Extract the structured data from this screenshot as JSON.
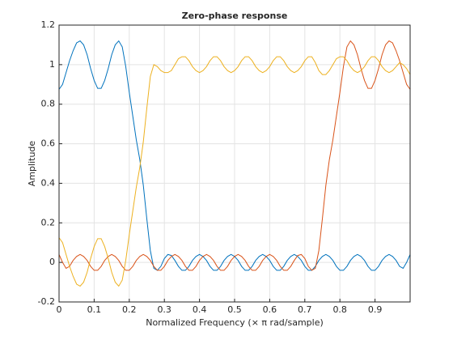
{
  "chart_data": {
    "type": "line",
    "title": "Zero-phase response",
    "x_label": "Normalized Frequency (× π rad/sample)",
    "y_label": "Amplitude",
    "x": [
      0,
      0.01,
      0.02,
      0.03,
      0.04,
      0.05,
      0.06,
      0.07,
      0.08,
      0.09,
      0.1,
      0.11,
      0.12,
      0.13,
      0.14,
      0.15,
      0.16,
      0.17,
      0.18,
      0.19,
      0.2,
      0.21,
      0.22,
      0.23,
      0.24,
      0.25,
      0.26,
      0.27,
      0.28,
      0.29,
      0.3,
      0.31,
      0.32,
      0.33,
      0.34,
      0.35,
      0.36,
      0.37,
      0.38,
      0.39,
      0.4,
      0.41,
      0.42,
      0.43,
      0.44,
      0.45,
      0.46,
      0.47,
      0.48,
      0.49,
      0.5,
      0.51,
      0.52,
      0.53,
      0.54,
      0.55,
      0.56,
      0.57,
      0.58,
      0.59,
      0.6,
      0.61,
      0.62,
      0.63,
      0.64,
      0.65,
      0.66,
      0.67,
      0.68,
      0.69,
      0.7,
      0.71,
      0.72,
      0.73,
      0.74,
      0.75,
      0.76,
      0.77,
      0.78,
      0.79,
      0.8,
      0.81,
      0.82,
      0.83,
      0.84,
      0.85,
      0.86,
      0.87,
      0.88,
      0.89,
      0.9,
      0.91,
      0.92,
      0.93,
      0.94,
      0.95,
      0.96,
      0.97,
      0.98,
      0.99,
      1
    ],
    "series": [
      {
        "color": "#0072bd",
        "values": [
          0.875,
          0.9,
          0.96,
          1.02,
          1.07,
          1.11,
          1.12,
          1.1,
          1.05,
          0.98,
          0.92,
          0.88,
          0.88,
          0.92,
          0.98,
          1.05,
          1.1,
          1.12,
          1.09,
          0.99,
          0.86,
          0.74,
          0.62,
          0.52,
          0.39,
          0.22,
          0.06,
          -0.03,
          -0.04,
          -0.02,
          0.02,
          0.04,
          0.035,
          0.01,
          -0.02,
          -0.04,
          -0.04,
          -0.02,
          0.01,
          0.03,
          0.04,
          0.03,
          0.01,
          -0.02,
          -0.04,
          -0.04,
          -0.02,
          0.01,
          0.03,
          0.04,
          0.03,
          0.01,
          -0.02,
          -0.04,
          -0.04,
          -0.02,
          0.01,
          0.03,
          0.04,
          0.03,
          0.01,
          -0.02,
          -0.04,
          -0.04,
          -0.02,
          0.01,
          0.03,
          0.04,
          0.03,
          0.01,
          -0.02,
          -0.04,
          -0.04,
          -0.02,
          0.01,
          0.03,
          0.04,
          0.03,
          0.01,
          -0.02,
          -0.04,
          -0.04,
          -0.02,
          0.01,
          0.03,
          0.04,
          0.03,
          0.01,
          -0.02,
          -0.04,
          -0.04,
          -0.02,
          0.01,
          0.03,
          0.04,
          0.03,
          0.01,
          -0.02,
          -0.03,
          0,
          0.04
        ]
      },
      {
        "color": "#d95319",
        "values": [
          0.04,
          0,
          -0.03,
          -0.02,
          0.01,
          0.03,
          0.04,
          0.03,
          0.01,
          -0.02,
          -0.04,
          -0.04,
          -0.02,
          0.01,
          0.03,
          0.04,
          0.03,
          0.01,
          -0.02,
          -0.04,
          -0.04,
          -0.02,
          0.01,
          0.03,
          0.04,
          0.03,
          0.01,
          -0.02,
          -0.04,
          -0.04,
          -0.02,
          0.01,
          0.03,
          0.04,
          0.03,
          0.01,
          -0.02,
          -0.04,
          -0.04,
          -0.02,
          0.01,
          0.03,
          0.04,
          0.03,
          0.01,
          -0.02,
          -0.04,
          -0.04,
          -0.02,
          0.01,
          0.03,
          0.04,
          0.03,
          0.01,
          -0.02,
          -0.04,
          -0.04,
          -0.02,
          0.01,
          0.03,
          0.04,
          0.03,
          0.01,
          -0.02,
          -0.04,
          -0.04,
          -0.02,
          0.01,
          0.035,
          0.04,
          0.02,
          -0.02,
          -0.04,
          -0.03,
          0.06,
          0.22,
          0.39,
          0.52,
          0.62,
          0.74,
          0.86,
          0.99,
          1.09,
          1.12,
          1.1,
          1.05,
          0.98,
          0.92,
          0.88,
          0.88,
          0.92,
          0.98,
          1.05,
          1.1,
          1.12,
          1.11,
          1.07,
          1.02,
          0.96,
          0.9,
          0.875
        ]
      },
      {
        "color": "#edb120",
        "values": [
          0.125,
          0.1,
          0.04,
          -0.02,
          -0.07,
          -0.11,
          -0.12,
          -0.1,
          -0.05,
          0.02,
          0.08,
          0.12,
          0.12,
          0.08,
          0.02,
          -0.05,
          -0.1,
          -0.12,
          -0.09,
          0.01,
          0.14,
          0.26,
          0.38,
          0.48,
          0.61,
          0.78,
          0.94,
          1.0,
          0.99,
          0.97,
          0.96,
          0.96,
          0.97,
          1.0,
          1.03,
          1.04,
          1.04,
          1.02,
          0.99,
          0.97,
          0.96,
          0.97,
          0.99,
          1.02,
          1.04,
          1.04,
          1.02,
          0.99,
          0.97,
          0.96,
          0.97,
          0.99,
          1.02,
          1.04,
          1.04,
          1.02,
          0.99,
          0.97,
          0.96,
          0.97,
          0.99,
          1.02,
          1.04,
          1.04,
          1.02,
          0.99,
          0.97,
          0.96,
          0.97,
          0.99,
          1.02,
          1.04,
          1.04,
          1.01,
          0.97,
          0.95,
          0.95,
          0.97,
          1.0,
          1.03,
          1.04,
          1.04,
          1.02,
          0.99,
          0.97,
          0.96,
          0.97,
          0.99,
          1.02,
          1.04,
          1.04,
          1.02,
          0.99,
          0.97,
          0.96,
          0.97,
          0.99,
          1.01,
          1.0,
          0.98,
          0.95
        ]
      }
    ],
    "xlim": [
      0,
      1
    ],
    "xticks": [
      0,
      0.1,
      0.2,
      0.3,
      0.4,
      0.5,
      0.6,
      0.7,
      0.8,
      0.9
    ],
    "ylim": [
      -0.2,
      1.2
    ],
    "yticks": [
      -0.2,
      0,
      0.2,
      0.4,
      0.6,
      0.8,
      1,
      1.2
    ],
    "grid": true
  }
}
